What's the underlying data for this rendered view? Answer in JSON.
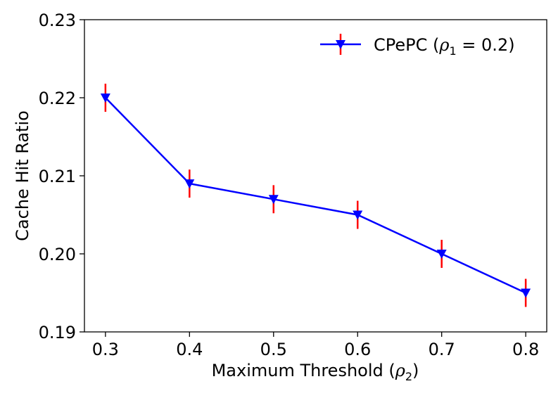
{
  "chart_data": {
    "type": "line",
    "x": [
      0.3,
      0.4,
      0.5,
      0.6,
      0.7,
      0.8
    ],
    "series": [
      {
        "name": "CPePC (ρ1 = 0.2)",
        "values": [
          0.22,
          0.209,
          0.207,
          0.205,
          0.2,
          0.195
        ],
        "error": [
          0.0018,
          0.0018,
          0.0018,
          0.0018,
          0.0018,
          0.0018
        ],
        "color": "#0000ff",
        "error_color": "#ff0000",
        "marker": "triangle-down"
      }
    ],
    "xlabel": "Maximum Threshold (ρ2)",
    "ylabel": "Cache Hit Ratio",
    "xticks": [
      "0.3",
      "0.4",
      "0.5",
      "0.6",
      "0.7",
      "0.8"
    ],
    "yticks": [
      "0.19",
      "0.20",
      "0.21",
      "0.22",
      "0.23"
    ],
    "xlim": [
      0.275,
      0.825
    ],
    "ylim": [
      0.19,
      0.23
    ],
    "grid": false,
    "legend_position": "top-right",
    "legend": {
      "prefix": "CPePC (",
      "rho": "ρ",
      "sub": "1",
      "suffix": " = 0.2)"
    },
    "xlabel_parts": {
      "prefix": "Maximum Threshold (",
      "rho": "ρ",
      "sub": "2",
      "suffix": ")"
    }
  }
}
